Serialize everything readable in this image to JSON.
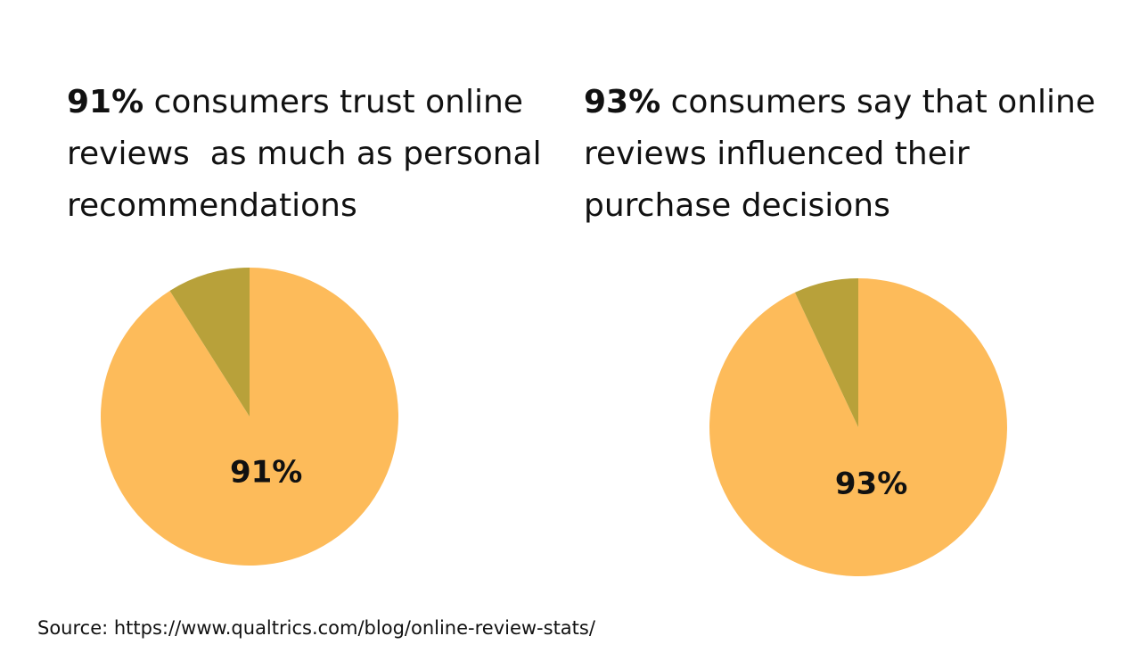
{
  "chart_data": [
    {
      "type": "pie",
      "title_lead": "91%",
      "title": "consumers trust online reviews  as much as personal recommendations",
      "values": [
        91,
        9
      ],
      "value_labels": [
        "91%",
        null
      ],
      "colors": [
        "#fdbb5a",
        "#b8a13a"
      ]
    },
    {
      "type": "pie",
      "title_lead": "93%",
      "title": "consumers say that online reviews influenced their purchase decisions",
      "values": [
        93,
        7
      ],
      "value_labels": [
        "93%",
        null
      ],
      "colors": [
        "#fdbb5a",
        "#b8a13a"
      ]
    }
  ],
  "source": "Source: https://www.qualtrics.com/blog/online-review-stats/"
}
